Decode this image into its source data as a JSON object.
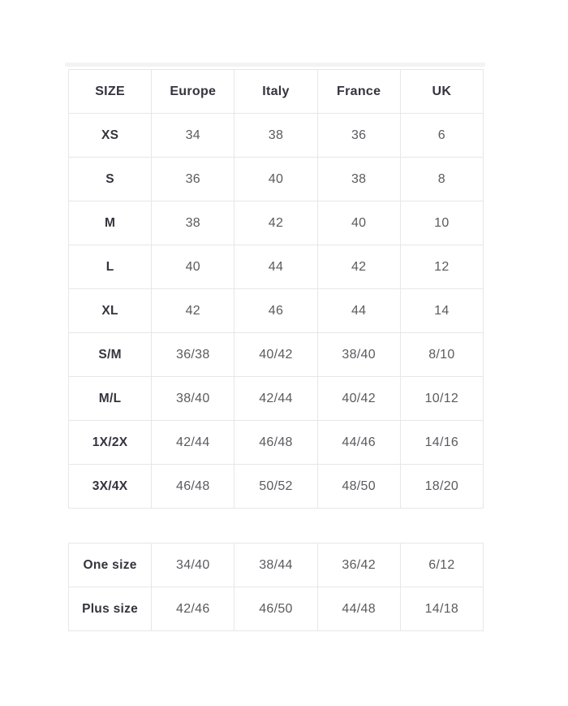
{
  "chart_data": {
    "type": "table",
    "columns": [
      "SIZE",
      "Europe",
      "Italy",
      "France",
      "UK"
    ],
    "rows": [
      [
        "XS",
        "34",
        "38",
        "36",
        "6"
      ],
      [
        "S",
        "36",
        "40",
        "38",
        "8"
      ],
      [
        "M",
        "38",
        "42",
        "40",
        "10"
      ],
      [
        "L",
        "40",
        "44",
        "42",
        "12"
      ],
      [
        "XL",
        "42",
        "46",
        "44",
        "14"
      ],
      [
        "S/M",
        "36/38",
        "40/42",
        "38/40",
        "8/10"
      ],
      [
        "M/L",
        "38/40",
        "42/44",
        "40/42",
        "10/12"
      ],
      [
        "1X/2X",
        "42/44",
        "46/48",
        "44/46",
        "14/16"
      ],
      [
        "3X/4X",
        "46/48",
        "50/52",
        "48/50",
        "18/20"
      ]
    ],
    "secondary_rows": [
      [
        "One size",
        "34/40",
        "38/44",
        "36/42",
        "6/12"
      ],
      [
        "Plus size",
        "42/46",
        "46/50",
        "44/48",
        "14/18"
      ]
    ]
  },
  "colors": {
    "background": "#ffffff",
    "border": "#e7e7e7",
    "header_text": "#34343e",
    "value_text": "#5b5b60"
  }
}
